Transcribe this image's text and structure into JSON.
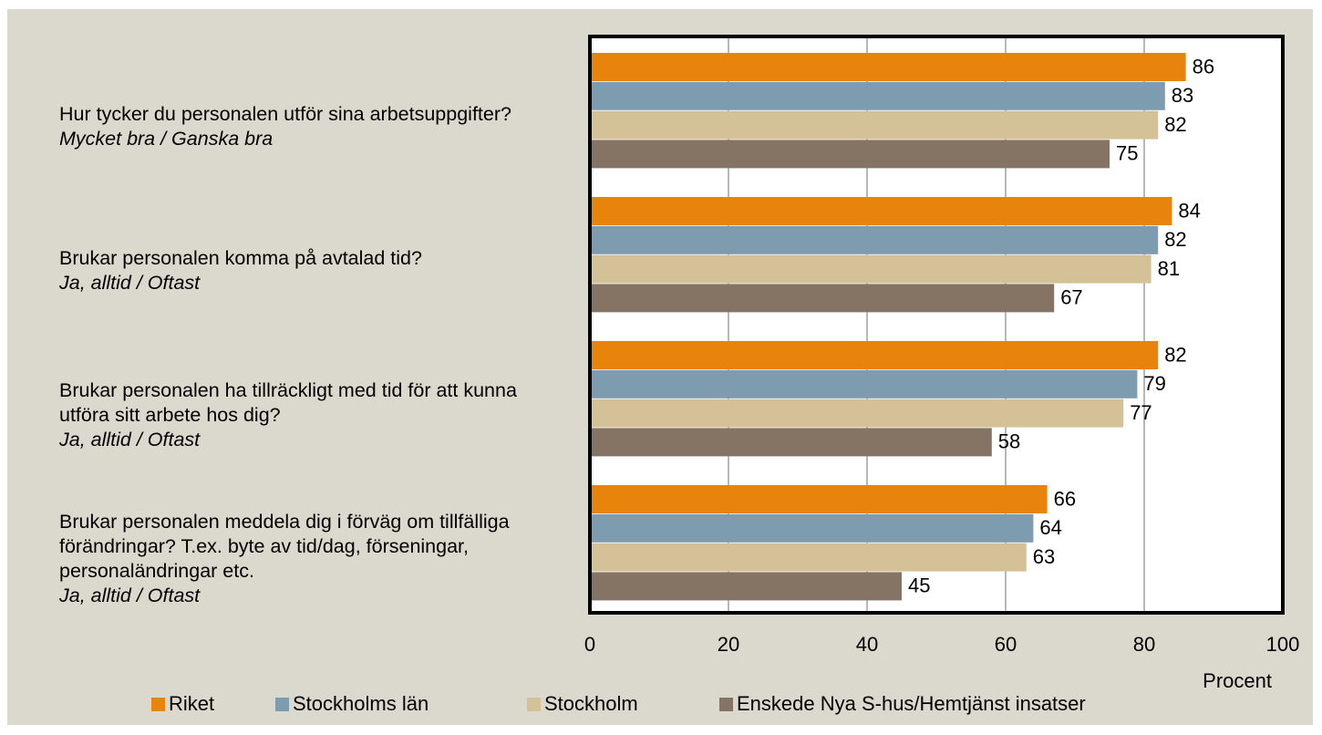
{
  "chart_data": {
    "type": "bar",
    "orientation": "horizontal",
    "categories": [
      "Hur tycker du personalen utför sina arbetsuppgifter?",
      "Brukar personalen komma på avtalad tid?",
      "Brukar personalen ha tillräckligt med tid för att kunna utföra sitt arbete hos dig?",
      "Brukar personalen meddela dig i förväg om tillfälliga förändringar? T.ex. byte av tid/dag, förseningar, personaländringar etc."
    ],
    "category_notes": [
      "Mycket bra / Ganska bra",
      "Ja, alltid / Oftast",
      "Ja, alltid / Oftast",
      "Ja, alltid / Oftast"
    ],
    "series": [
      {
        "name": "Riket",
        "color": "#e8830c",
        "values": [
          86,
          84,
          82,
          66
        ]
      },
      {
        "name": "Stockholms län",
        "color": "#7e9cb0",
        "values": [
          83,
          82,
          79,
          64
        ]
      },
      {
        "name": "Stockholm",
        "color": "#d4c198",
        "values": [
          82,
          81,
          77,
          63
        ]
      },
      {
        "name": "Enskede Nya S-hus/Hemtjänst insatser",
        "color": "#857363",
        "values": [
          75,
          67,
          58,
          45
        ]
      }
    ],
    "xlabel": "Procent",
    "xlim": [
      0,
      100
    ],
    "xticks": [
      0,
      20,
      40,
      60,
      80,
      100
    ],
    "grid": true
  }
}
